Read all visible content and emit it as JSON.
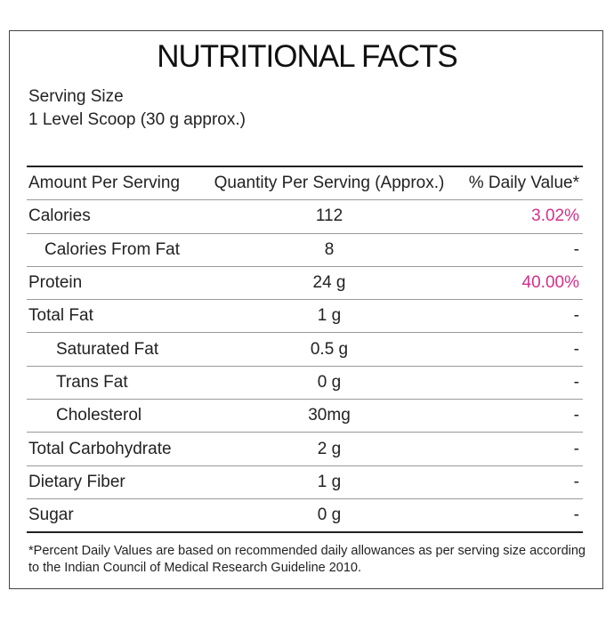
{
  "header": {
    "title": "NUTRITIONAL FACTS",
    "serving_label": "Serving Size",
    "serving_value": "1 Level Scoop (30 g approx.)"
  },
  "table": {
    "columns": [
      "Amount Per Serving",
      "Quantity Per Serving (Approx.)",
      "% Daily Value*"
    ],
    "rows": [
      [
        "Calories",
        "112",
        "3.02%"
      ],
      [
        "Calories From Fat",
        "8",
        "-"
      ],
      [
        "Protein",
        "24 g",
        "40.00%"
      ],
      [
        "Total Fat",
        "1 g",
        "-"
      ],
      [
        "Saturated Fat",
        "0.5 g",
        "-"
      ],
      [
        "Trans Fat",
        "0 g",
        "-"
      ],
      [
        "Cholesterol",
        "30mg",
        "-"
      ],
      [
        "Total Carbohydrate",
        "2 g",
        "-"
      ],
      [
        "Dietary Fiber",
        "1 g",
        "-"
      ],
      [
        "Sugar",
        "0 g",
        "-"
      ]
    ]
  },
  "footnote": "*Percent Daily Values are based on recommended daily allowances as per serving size according to the Indian Council of Medical Research Guideline 2010."
}
